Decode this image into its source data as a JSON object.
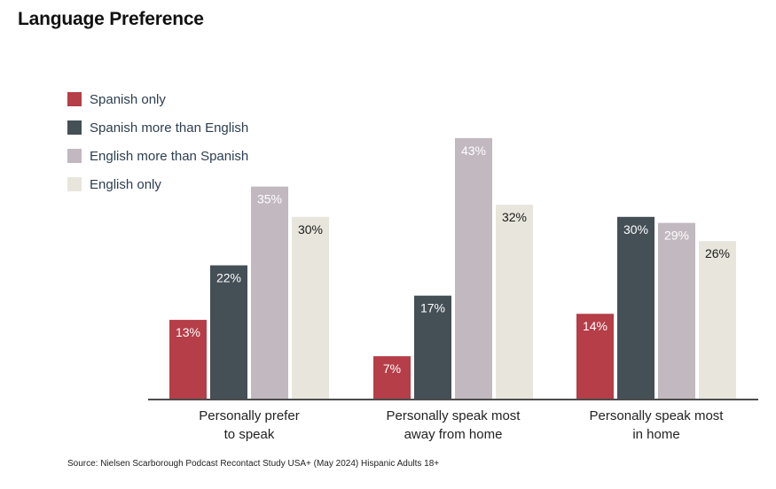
{
  "chart_data": {
    "type": "bar",
    "title": "Language Preference",
    "categories": [
      [
        "Personally prefer",
        "to speak"
      ],
      [
        "Personally speak most",
        "away from home"
      ],
      [
        "Personally speak most",
        "in home"
      ]
    ],
    "series": [
      {
        "name": "Spanish only",
        "color": "#b53e48",
        "label_color": "#ffffff",
        "values": [
          13,
          7,
          14
        ]
      },
      {
        "name": "Spanish more than English",
        "color": "#444f56",
        "label_color": "#ffffff",
        "values": [
          22,
          17,
          30
        ]
      },
      {
        "name": "English more than Spanish",
        "color": "#c2b8c0",
        "label_color": "#ffffff",
        "values": [
          35,
          43,
          29
        ]
      },
      {
        "name": "English only",
        "color": "#e8e6dc",
        "label_color": "#1a1a1a",
        "values": [
          30,
          32,
          26
        ]
      }
    ],
    "value_suffix": "%",
    "ylim": [
      0,
      43
    ],
    "legend_position": "top-left",
    "grid": false
  },
  "source": "Source: Nielsen Scarborough Podcast Recontact Study USA+ (May 2024) Hispanic Adults 18+"
}
